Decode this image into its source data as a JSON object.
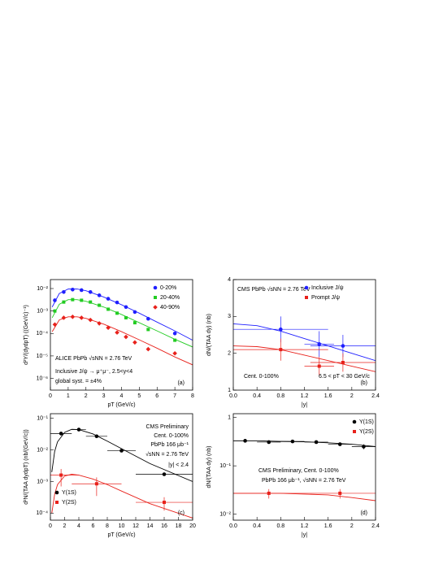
{
  "chart_data": [
    {
      "type": "scatter",
      "panel_label": "(a)",
      "x_label": "pT (GeV/c)",
      "y_label": "d²Y/(dydpT) ((GeV/c)⁻¹)",
      "xlim": [
        0,
        8
      ],
      "xticks": [
        0,
        1,
        2,
        3,
        4,
        5,
        6,
        7,
        8
      ],
      "ylim": [
        3e-07,
        0.025
      ],
      "log_y": true,
      "yticks": [
        {
          "value": 1e-06,
          "label": "10⁻⁶"
        },
        {
          "value": 1e-05,
          "label": "10⁻⁵"
        },
        {
          "value": 0.0001,
          "label": "10⁻⁴"
        },
        {
          "value": 0.001,
          "label": "10⁻³"
        },
        {
          "value": 0.01,
          "label": "10⁻²"
        }
      ],
      "legend": "upper right",
      "annotations": [
        "ALICE PbPb √sNN = 2.76 TeV",
        "Inclusive J/ψ → μ⁺μ⁻, 2.5<y<4",
        "global syst. = ±4%"
      ],
      "x": [
        0.25,
        0.75,
        1.25,
        1.75,
        2.25,
        2.75,
        3.25,
        3.75,
        4.25,
        4.75,
        5.5,
        7.0
      ],
      "series": [
        {
          "name": "0-20%",
          "color": "#1f1fff",
          "marker": "circle",
          "values": [
            0.003,
            0.007,
            0.009,
            0.0085,
            0.007,
            0.005,
            0.0035,
            0.0024,
            0.0015,
            0.0009,
            0.00045,
            0.0001
          ]
        },
        {
          "name": "20-40%",
          "color": "#22cc22",
          "marker": "square",
          "values": [
            0.001,
            0.0025,
            0.0032,
            0.003,
            0.0025,
            0.0018,
            0.0012,
            0.0008,
            0.0005,
            0.0003,
            0.00015,
            5e-05
          ]
        },
        {
          "name": "40-90%",
          "color": "#e8211b",
          "marker": "diamond",
          "values": [
            0.00025,
            0.0005,
            0.00055,
            0.0005,
            0.0004,
            0.00028,
            0.00018,
            0.00011,
            7e-05,
            4e-05,
            2e-05,
            1.3e-05
          ]
        }
      ],
      "curves": [
        {
          "color": "#1f1fff",
          "x": [
            0.1,
            0.5,
            1,
            1.5,
            2,
            3,
            4,
            5,
            6,
            7,
            8
          ],
          "values": [
            0.0015,
            0.006,
            0.0095,
            0.0095,
            0.008,
            0.0042,
            0.0019,
            0.0008,
            0.00032,
            0.00013,
            5e-05
          ]
        },
        {
          "color": "#22cc22",
          "x": [
            0.1,
            0.5,
            1,
            1.5,
            2,
            3,
            4,
            5,
            6,
            7,
            8
          ],
          "values": [
            0.0005,
            0.002,
            0.0032,
            0.0032,
            0.0027,
            0.0015,
            0.0007,
            0.0003,
            0.00013,
            5.5e-05,
            2.5e-05
          ]
        },
        {
          "color": "#e8211b",
          "x": [
            0.1,
            0.5,
            1,
            1.5,
            2,
            3,
            4,
            5,
            6,
            7,
            8
          ],
          "values": [
            0.00012,
            0.0004,
            0.00055,
            0.00055,
            0.00047,
            0.00026,
            0.00012,
            5.2e-05,
            2.2e-05,
            9e-06,
            4e-06
          ]
        }
      ]
    },
    {
      "type": "scatter",
      "panel_label": "(b)",
      "x_label": "|y|",
      "y_label": "dN/(TAA dy) (nb)",
      "xlim": [
        0,
        2.4
      ],
      "xticks": [
        {
          "value": 0,
          "label": "0.0"
        },
        0.4,
        0.8,
        1.2,
        1.6,
        2,
        2.4
      ],
      "ylim": [
        1,
        4
      ],
      "yticks": [
        1,
        2,
        3,
        4
      ],
      "legend": "upper right",
      "annotations": [
        "CMS PbPb √sNN = 2.76 TeV",
        "Cent. 0-100%",
        "6.5 < pT < 30 GeV/c"
      ],
      "x": [
        0.8,
        1.45,
        1.85
      ],
      "series": [
        {
          "name": "Inclusive J/ψ",
          "color": "#1f1fff",
          "marker": "circle",
          "values": [
            2.65,
            2.25,
            2.2
          ],
          "xerr": [
            0.8,
            0.25,
            0.55
          ],
          "yerr": [
            0.35,
            0.35,
            0.3
          ]
        },
        {
          "name": "Prompt J/ψ",
          "color": "#e8211b",
          "marker": "square",
          "values": [
            2.1,
            1.65,
            1.75
          ],
          "xerr": [
            0.8,
            0.25,
            0.55
          ],
          "yerr": [
            0.3,
            0.25,
            0.25
          ]
        }
      ],
      "curves": [
        {
          "color": "#1f1fff",
          "x": [
            0,
            0.4,
            0.8,
            1.2,
            1.6,
            2,
            2.4
          ],
          "values": [
            2.8,
            2.75,
            2.6,
            2.4,
            2.2,
            2.0,
            1.8
          ]
        },
        {
          "color": "#e8211b",
          "x": [
            0,
            0.4,
            0.8,
            1.2,
            1.6,
            2,
            2.4
          ],
          "values": [
            2.2,
            2.18,
            2.1,
            1.95,
            1.8,
            1.65,
            1.5
          ]
        }
      ]
    },
    {
      "type": "scatter",
      "panel_label": "(c)",
      "x_label": "pT (GeV/c)",
      "y_label": "d²N/(TAA dydpT) (nb/(GeV/c))",
      "xlim": [
        0,
        20
      ],
      "xticks": [
        0,
        2,
        4,
        6,
        8,
        10,
        12,
        14,
        16,
        18,
        20
      ],
      "ylim": [
        6e-05,
        0.14
      ],
      "log_y": true,
      "yticks": [
        {
          "value": 0.0001,
          "label": "10⁻⁴"
        },
        {
          "value": 0.001,
          "label": "10⁻³"
        },
        {
          "value": 0.01,
          "label": "10⁻²"
        },
        {
          "value": 0.1,
          "label": "10⁻¹"
        }
      ],
      "legend": "lower left",
      "annotations": [
        "CMS Preliminary",
        "Cent. 0-100%",
        "PbPb 166 μb⁻¹",
        "√sNN = 2.76 TeV",
        "|y| < 2.4"
      ],
      "x": [
        1.5,
        4,
        6.5,
        10,
        16
      ],
      "series": [
        {
          "name": "Υ(1S)",
          "color": "#000000",
          "marker": "circle",
          "values": [
            0.033,
            0.044,
            0.027,
            0.0095,
            0.0017
          ],
          "xerr": [
            1.5,
            1,
            1.5,
            2,
            4
          ],
          "yerr": [
            0.004,
            0.004,
            0.003,
            0.001,
            0.0002
          ]
        },
        {
          "name": "Υ(2S)",
          "color": "#e8211b",
          "marker": "square",
          "values": [
            0.0016,
            null,
            0.00085,
            null,
            0.00022
          ],
          "xerr": [
            2.5,
            null,
            3.5,
            null,
            4
          ],
          "yerr": [
            0.0009,
            null,
            0.0005,
            null,
            0.0001
          ]
        }
      ],
      "curves": [
        {
          "color": "#000000",
          "x": [
            0.2,
            0.6,
            1,
            2,
            3,
            4,
            6,
            8,
            10,
            14,
            20
          ],
          "values": [
            0.002,
            0.009,
            0.018,
            0.036,
            0.045,
            0.044,
            0.032,
            0.019,
            0.011,
            0.0037,
            0.001
          ]
        },
        {
          "color": "#e8211b",
          "x": [
            0.2,
            0.6,
            1,
            2,
            3,
            4,
            6,
            8,
            10,
            14,
            20
          ],
          "values": [
            0.0001,
            0.0004,
            0.0008,
            0.0015,
            0.0017,
            0.0016,
            0.0012,
            0.0008,
            0.0005,
            0.0002,
            7e-05
          ]
        }
      ]
    },
    {
      "type": "scatter",
      "panel_label": "(d)",
      "x_label": "|y|",
      "y_label": "dN/(TAA dy) (nb)",
      "xlim": [
        0,
        2.4
      ],
      "xticks": [
        {
          "value": 0,
          "label": "0.0"
        },
        0.4,
        0.8,
        1.2,
        1.6,
        2,
        2.4
      ],
      "ylim": [
        0.0075,
        1.2
      ],
      "log_y": true,
      "yticks": [
        {
          "value": 0.01,
          "label": "10⁻²"
        },
        {
          "value": 0.1,
          "label": "10⁻¹"
        },
        1
      ],
      "legend": "upper right",
      "annotations": [
        "CMS Preliminary, Cent. 0-100%",
        "PbPb 166 μb⁻¹, √sNN = 2.76 TeV"
      ],
      "x": [
        0.2,
        0.6,
        1.0,
        1.4,
        1.8,
        2.2
      ],
      "series": [
        {
          "name": "Υ(1S)",
          "color": "#000000",
          "marker": "circle",
          "values": [
            0.33,
            0.31,
            0.32,
            0.31,
            0.28,
            0.25
          ],
          "xerr": [
            0.2,
            0.2,
            0.2,
            0.2,
            0.2,
            0.2
          ],
          "yerr": [
            0.02,
            0.02,
            0.02,
            0.02,
            0.02,
            0.03
          ]
        },
        {
          "name": "Υ(2S)",
          "color": "#e8211b",
          "marker": "square",
          "values": [
            null,
            0.027,
            null,
            null,
            0.027,
            null
          ],
          "xerr": [
            null,
            0.6,
            null,
            null,
            0.6,
            null
          ],
          "yerr": [
            null,
            0.006,
            null,
            null,
            0.006,
            null
          ]
        }
      ],
      "curves": [
        {
          "color": "#000000",
          "x": [
            0,
            0.4,
            0.8,
            1.2,
            1.6,
            2,
            2.4
          ],
          "values": [
            0.33,
            0.33,
            0.32,
            0.315,
            0.3,
            0.28,
            0.25
          ]
        },
        {
          "color": "#e8211b",
          "x": [
            0,
            0.4,
            0.8,
            1.2,
            1.6,
            2,
            2.4
          ],
          "values": [
            0.027,
            0.027,
            0.027,
            0.026,
            0.025,
            0.022,
            0.019
          ]
        }
      ]
    }
  ]
}
